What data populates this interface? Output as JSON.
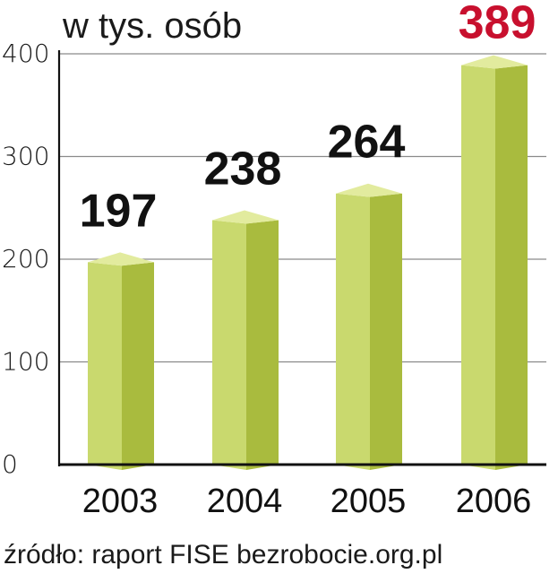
{
  "chart_data": {
    "type": "bar",
    "unit_label": "w tys. osób",
    "categories": [
      "2003",
      "2004",
      "2005",
      "2006"
    ],
    "values": [
      197,
      238,
      264,
      389
    ],
    "value_labels": [
      "197",
      "238",
      "264",
      "389"
    ],
    "highlight_index": 3,
    "yticks": [
      "0",
      "100",
      "200",
      "300",
      "400"
    ],
    "ylim": [
      0,
      400
    ],
    "grid": true,
    "source": "źródło: raport FISE bezrobocie.org.pl",
    "colors": {
      "bar_front": "#c9d96e",
      "bar_side": "#a9bb3e",
      "bar_top": "#e2eb9e",
      "value_text": "#111111",
      "highlight_text": "#c8102e",
      "grid": "#8a8a8a",
      "axis": "#111111"
    }
  }
}
